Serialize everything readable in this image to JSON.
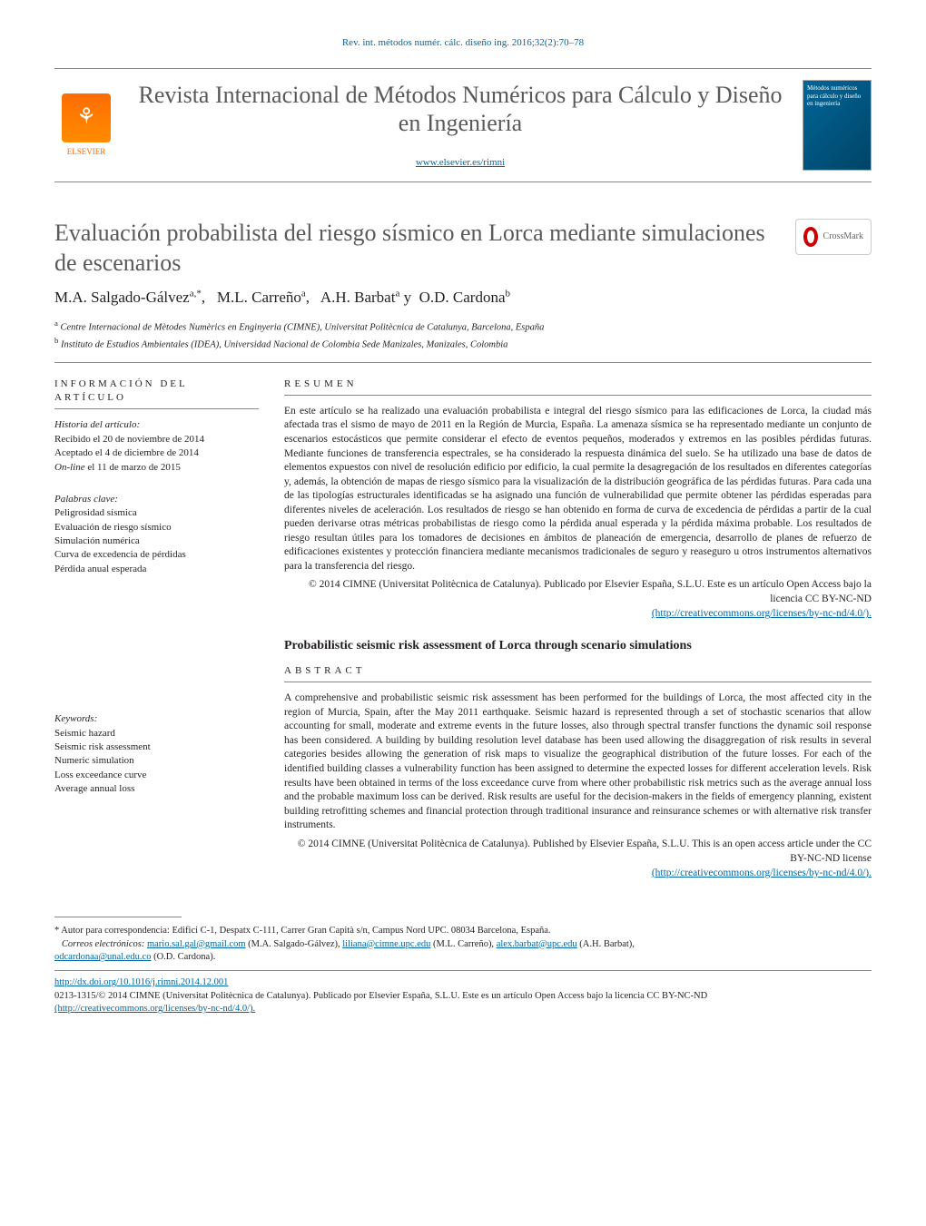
{
  "citation": "Rev. int. métodos numér. cálc. diseño ing. 2016;32(2):70–78",
  "publisher": {
    "name": "ELSEVIER"
  },
  "journal": {
    "title": "Revista Internacional de Métodos Numéricos para Cálculo y Diseño en Ingeniería",
    "url": "www.elsevier.es/rimni",
    "cover_text": "Métodos numéricos para cálculo y diseño en ingeniería"
  },
  "article": {
    "title": "Evaluación probabilista del riesgo sísmico en Lorca mediante simulaciones de escenarios",
    "title_en": "Probabilistic seismic risk assessment of Lorca through scenario simulations",
    "authors_html": "M.A. Salgado-Gálvez",
    "authors": [
      {
        "name": "M.A. Salgado-Gálvez",
        "aff": "a,*"
      },
      {
        "name": "M.L. Carreño",
        "aff": "a"
      },
      {
        "name": "A.H. Barbat",
        "aff": "a"
      },
      {
        "name": "O.D. Cardona",
        "aff": "b"
      }
    ],
    "affiliations": {
      "a": "Centre Internacional de Mètodes Numèrics en Enginyeria (CIMNE), Universitat Politècnica de Catalunya, Barcelona, España",
      "b": "Instituto de Estudios Ambientales (IDEA), Universidad Nacional de Colombia Sede Manizales, Manizales, Colombia"
    }
  },
  "info": {
    "label": "INFORMACIÓN DEL ARTÍCULO",
    "history_label": "Historia del artículo:",
    "received": "Recibido el 20 de noviembre de 2014",
    "accepted": "Aceptado el 4 de diciembre de 2014",
    "online": "On-line el 11 de marzo de 2015",
    "keywords_label": "Palabras clave:",
    "keywords": [
      "Peligrosidad sísmica",
      "Evaluación de riesgo sísmico",
      "Simulación numérica",
      "Curva de excedencia de pérdidas",
      "Pérdida anual esperada"
    ],
    "keywords_en_label": "Keywords:",
    "keywords_en": [
      "Seismic hazard",
      "Seismic risk assessment",
      "Numeric simulation",
      "Loss exceedance curve",
      "Average annual loss"
    ]
  },
  "resumen": {
    "label": "RESUMEN",
    "text": "En este artículo se ha realizado una evaluación probabilista e integral del riesgo sísmico para las edificaciones de Lorca, la ciudad más afectada tras el sismo de mayo de 2011 en la Región de Murcia, España. La amenaza sísmica se ha representado mediante un conjunto de escenarios estocásticos que permite considerar el efecto de eventos pequeños, moderados y extremos en las posibles pérdidas futuras. Mediante funciones de transferencia espectrales, se ha considerado la respuesta dinámica del suelo. Se ha utilizado una base de datos de elementos expuestos con nivel de resolución edificio por edificio, la cual permite la desagregación de los resultados en diferentes categorías y, además, la obtención de mapas de riesgo sísmico para la visualización de la distribución geográfica de las pérdidas futuras. Para cada una de las tipologías estructurales identificadas se ha asignado una función de vulnerabilidad que permite obtener las pérdidas esperadas para diferentes niveles de aceleración. Los resultados de riesgo se han obtenido en forma de curva de excedencia de pérdidas a partir de la cual pueden derivarse otras métricas probabilistas de riesgo como la pérdida anual esperada y la pérdida máxima probable. Los resultados de riesgo resultan útiles para los tomadores de decisiones en ámbitos de planeación de emergencia, desarrollo de planes de refuerzo de edificaciones existentes y protección financiera mediante mecanismos tradicionales de seguro y reaseguro u otros instrumentos alternativos para la transferencia del riesgo.",
    "copyright": "© 2014 CIMNE (Universitat Politècnica de Catalunya). Publicado por Elsevier España, S.L.U. Este es un artículo Open Access bajo la licencia CC BY-NC-ND",
    "license_url": "(http://creativecommons.org/licenses/by-nc-nd/4.0/)."
  },
  "abstract": {
    "label": "ABSTRACT",
    "text": "A comprehensive and probabilistic seismic risk assessment has been performed for the buildings of Lorca, the most affected city in the region of Murcia, Spain, after the May 2011 earthquake. Seismic hazard is represented through a set of stochastic scenarios that allow accounting for small, moderate and extreme events in the future losses, also through spectral transfer functions the dynamic soil response has been considered. A building by building resolution level database has been used allowing the disaggregation of risk results in several categories besides allowing the generation of risk maps to visualize the geographical distribution of the future losses. For each of the identified building classes a vulnerability function has been assigned to determine the expected losses for different acceleration levels. Risk results have been obtained in terms of the loss exceedance curve from where other probabilistic risk metrics such as the average annual loss and the probable maximum loss can be derived. Risk results are useful for the decision-makers in the fields of emergency planning, existent building retrofitting schemes and financial protection through traditional insurance and reinsurance schemes or with alternative risk transfer instruments.",
    "copyright": "© 2014 CIMNE (Universitat Politècnica de Catalunya). Published by Elsevier España, S.L.U. This is an open access article under the CC BY-NC-ND license",
    "license_url": "(http://creativecommons.org/licenses/by-nc-nd/4.0/)."
  },
  "footnotes": {
    "corresponding": "* Autor para correspondencia: Edifici C-1, Despatx C-111, Carrer Gran Capità s/n, Campus Nord UPC. 08034 Barcelona, España.",
    "emails_label": "Correos electrónicos:",
    "emails": [
      {
        "addr": "mario.sal.gal@gmail.com",
        "who": "(M.A. Salgado-Gálvez),"
      },
      {
        "addr": "liliana@cimne.upc.edu",
        "who": "(M.L. Carreño),"
      },
      {
        "addr": "alex.barbat@upc.edu",
        "who": "(A.H. Barbat),"
      },
      {
        "addr": "odcardonaa@unal.edu.co",
        "who": "(O.D. Cardona)."
      }
    ],
    "doi": "http://dx.doi.org/10.1016/j.rimni.2014.12.001",
    "issn_line": "0213-1315/© 2014 CIMNE (Universitat Politècnica de Catalunya). Publicado por Elsevier España, S.L.U. Este es un artículo Open Access bajo la licencia CC BY-NC-ND",
    "issn_license": "(http://creativecommons.org/licenses/by-nc-nd/4.0/)."
  },
  "crossmark": "CrossMark",
  "colors": {
    "elsevier_orange": "#ff6c00",
    "link_blue": "#0066a4",
    "heading_gray": "#58595b",
    "rule_gray": "#888888",
    "text": "#231f20"
  }
}
